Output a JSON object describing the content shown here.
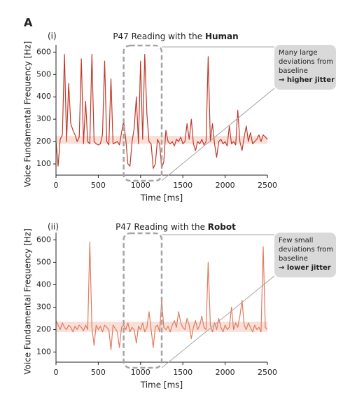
{
  "panel_label": "A",
  "chart_data": [
    {
      "type": "line",
      "label": "(i)",
      "title": "P47 Reading with the",
      "title_emphasis": "Human",
      "x_label": "Time [ms]",
      "y_label": "Voice Fundamental Frequency [Hz]",
      "color": "#c0392b",
      "annotation_lines": [
        "Many large",
        "deviations from",
        "baseline"
      ],
      "annotation_emphasis": "→ higher jitter",
      "baseline_band": [
        190,
        225
      ],
      "highlight": [
        800,
        1250
      ],
      "xlim": [
        0,
        2500
      ],
      "xticks": [
        0,
        500,
        1000,
        1500,
        2000,
        2500
      ],
      "ylim": [
        50,
        620
      ],
      "yticks": [
        100,
        200,
        300,
        400,
        500,
        600
      ],
      "x": [
        0,
        25,
        50,
        75,
        100,
        125,
        150,
        175,
        200,
        225,
        250,
        275,
        300,
        325,
        350,
        375,
        400,
        425,
        450,
        475,
        500,
        525,
        550,
        575,
        600,
        625,
        650,
        675,
        700,
        725,
        750,
        775,
        800,
        825,
        850,
        875,
        900,
        925,
        950,
        975,
        1000,
        1025,
        1050,
        1075,
        1100,
        1125,
        1150,
        1175,
        1200,
        1225,
        1250,
        1275,
        1300,
        1325,
        1350,
        1375,
        1400,
        1425,
        1450,
        1475,
        1500,
        1525,
        1550,
        1575,
        1600,
        1625,
        1650,
        1675,
        1700,
        1725,
        1750,
        1775,
        1800,
        1825,
        1850,
        1875,
        1900,
        1925,
        1950,
        1975,
        2000,
        2025,
        2050,
        2075,
        2100,
        2125,
        2150,
        2175,
        2200,
        2225,
        2250,
        2275,
        2300,
        2325,
        2350,
        2375,
        2400,
        2425,
        2450,
        2475,
        2500
      ],
      "values": [
        200,
        90,
        210,
        230,
        590,
        200,
        460,
        280,
        250,
        230,
        200,
        220,
        570,
        190,
        380,
        200,
        190,
        590,
        200,
        190,
        185,
        190,
        230,
        560,
        200,
        185,
        480,
        190,
        195,
        200,
        185,
        240,
        290,
        210,
        100,
        90,
        200,
        260,
        400,
        190,
        560,
        210,
        590,
        320,
        200,
        190,
        80,
        100,
        210,
        190,
        80,
        110,
        250,
        200,
        190,
        200,
        180,
        210,
        200,
        220,
        190,
        200,
        280,
        210,
        300,
        190,
        160,
        200,
        190,
        210,
        185,
        200,
        580,
        200,
        280,
        190,
        130,
        200,
        210,
        190,
        200,
        180,
        270,
        190,
        200,
        185,
        340,
        200,
        160,
        220,
        270,
        200,
        240,
        190,
        200,
        210,
        230,
        200,
        230,
        220,
        210
      ]
    },
    {
      "type": "line",
      "label": "(ii)",
      "title": "P47 Reading with the",
      "title_emphasis": "Robot",
      "x_label": "Time [ms]",
      "y_label": "Voice Fundamental Frequency [Hz]",
      "color": "#e07b5f",
      "annotation_lines": [
        "Few small",
        "deviations from",
        "baseline"
      ],
      "annotation_emphasis": "→ lower jitter",
      "baseline_band": [
        190,
        235
      ],
      "highlight": [
        800,
        1250
      ],
      "xlim": [
        0,
        2500
      ],
      "xticks": [
        0,
        500,
        1000,
        1500,
        2000,
        2500
      ],
      "ylim": [
        55,
        620
      ],
      "yticks": [
        100,
        200,
        300,
        400,
        500,
        600
      ],
      "x": [
        0,
        25,
        50,
        75,
        100,
        125,
        150,
        175,
        200,
        225,
        250,
        275,
        300,
        325,
        350,
        375,
        400,
        425,
        450,
        475,
        500,
        525,
        550,
        575,
        600,
        625,
        650,
        675,
        700,
        725,
        750,
        775,
        800,
        825,
        850,
        875,
        900,
        925,
        950,
        975,
        1000,
        1025,
        1050,
        1075,
        1100,
        1125,
        1150,
        1175,
        1200,
        1225,
        1250,
        1275,
        1300,
        1325,
        1350,
        1375,
        1400,
        1425,
        1450,
        1475,
        1500,
        1525,
        1550,
        1575,
        1600,
        1625,
        1650,
        1675,
        1700,
        1725,
        1750,
        1775,
        1800,
        1825,
        1850,
        1875,
        1900,
        1925,
        1950,
        1975,
        2000,
        2025,
        2050,
        2075,
        2100,
        2125,
        2150,
        2175,
        2200,
        2225,
        2250,
        2275,
        2300,
        2325,
        2350,
        2375,
        2400,
        2425,
        2450,
        2475,
        2500
      ],
      "values": [
        240,
        220,
        200,
        230,
        210,
        200,
        220,
        210,
        190,
        215,
        200,
        220,
        210,
        195,
        220,
        200,
        590,
        210,
        130,
        220,
        200,
        215,
        190,
        220,
        210,
        200,
        110,
        220,
        205,
        190,
        120,
        210,
        220,
        200,
        230,
        190,
        210,
        200,
        140,
        215,
        200,
        230,
        190,
        210,
        280,
        200,
        120,
        210,
        220,
        190,
        330,
        210,
        200,
        215,
        190,
        220,
        240,
        210,
        280,
        230,
        210,
        200,
        250,
        220,
        160,
        210,
        240,
        200,
        220,
        260,
        210,
        200,
        500,
        220,
        190,
        230,
        200,
        250,
        210,
        190,
        220,
        200,
        210,
        300,
        200,
        230,
        210,
        260,
        330,
        220,
        200,
        230,
        210,
        190,
        220,
        200,
        210,
        190,
        570,
        210,
        200
      ]
    }
  ]
}
